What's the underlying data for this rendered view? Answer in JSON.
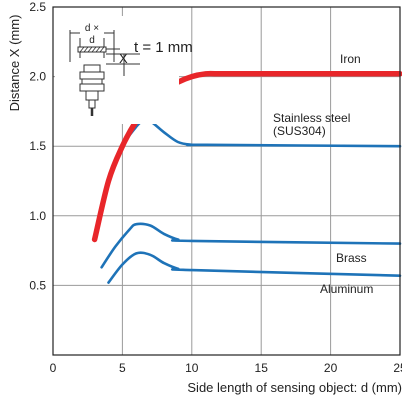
{
  "chart_data": {
    "type": "line",
    "xlabel": "Side length of sensing object: d (mm)",
    "ylabel": "Distance X (mm)",
    "xlim": [
      0,
      25
    ],
    "ylim": [
      0,
      2.5
    ],
    "xticks": [
      0,
      5,
      10,
      15,
      20,
      25
    ],
    "yticks": [
      0.5,
      1.0,
      1.5,
      2.0,
      2.5
    ],
    "xtick_labels": [
      "0",
      "5",
      "10",
      "15",
      "20",
      "25"
    ],
    "ytick_labels": [
      "0.5",
      "1.0",
      "1.5",
      "2.0",
      "2.5"
    ],
    "grid": true,
    "inset": {
      "label_d_times": "d ×",
      "label_d": "d",
      "label_x": "X",
      "thickness": "t = 1 mm"
    },
    "series": [
      {
        "name": "Iron",
        "color": "#e8262a",
        "x": [
          3,
          4,
          5,
          6,
          7,
          8,
          9,
          10,
          11,
          12,
          13,
          25
        ],
        "y": [
          0.83,
          1.25,
          1.5,
          1.68,
          1.8,
          1.9,
          1.96,
          2.0,
          2.02,
          2.02,
          2.02,
          2.02
        ]
      },
      {
        "name": "Stainless steel (SUS304)",
        "label_lines": [
          "Stainless steel",
          "(SUS304)"
        ],
        "color": "#1e73b8",
        "x": [
          3,
          4,
          5,
          6,
          6.5,
          7,
          8,
          9,
          10,
          11,
          25
        ],
        "y": [
          0.85,
          1.27,
          1.5,
          1.64,
          1.68,
          1.68,
          1.6,
          1.53,
          1.51,
          1.51,
          1.5
        ]
      },
      {
        "name": "Brass",
        "color": "#1e73b8",
        "x": [
          3.5,
          4.5,
          5.5,
          6,
          7,
          8,
          9,
          10,
          25
        ],
        "y": [
          0.63,
          0.78,
          0.9,
          0.94,
          0.93,
          0.87,
          0.83,
          0.82,
          0.8
        ]
      },
      {
        "name": "Aluminum",
        "color": "#1e73b8",
        "x": [
          4,
          5,
          6,
          7,
          8,
          9,
          10,
          25
        ],
        "y": [
          0.52,
          0.65,
          0.73,
          0.72,
          0.66,
          0.62,
          0.61,
          0.57
        ]
      }
    ]
  }
}
